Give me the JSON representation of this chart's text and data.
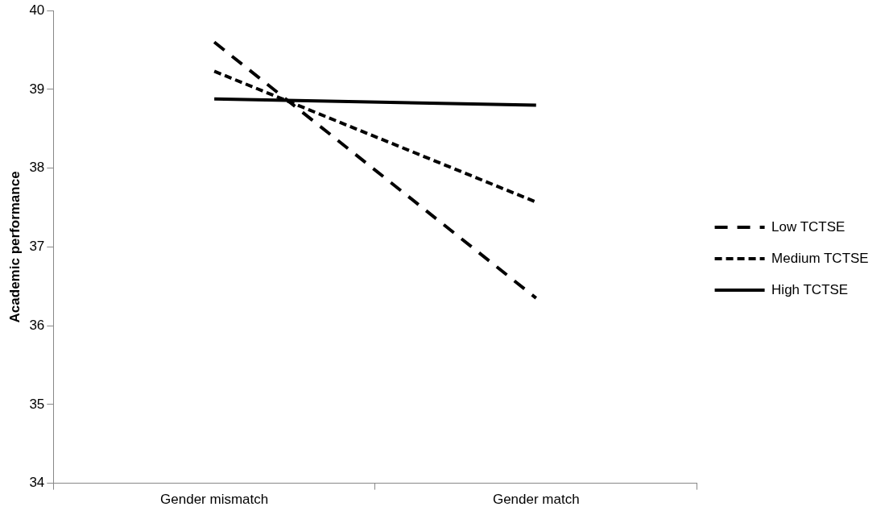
{
  "chart_data": {
    "type": "line",
    "ylabel": "Academic performance",
    "categories": [
      "Gender mismatch",
      "Gender match"
    ],
    "series": [
      {
        "name": "Low TCTSE",
        "color": "#000000",
        "line_style": "dashed",
        "values": [
          39.6,
          36.35
        ]
      },
      {
        "name": "Medium TCTSE",
        "color": "#000000",
        "line_style": "dotted",
        "values": [
          39.23,
          37.57
        ]
      },
      {
        "name": "High TCTSE",
        "color": "#000000",
        "line_style": "solid",
        "values": [
          38.88,
          38.8
        ]
      }
    ],
    "ylim": [
      34,
      40
    ],
    "yticks": [
      34,
      35,
      36,
      37,
      38,
      39,
      40
    ],
    "grid": false,
    "legend": "right",
    "marker": "none"
  }
}
